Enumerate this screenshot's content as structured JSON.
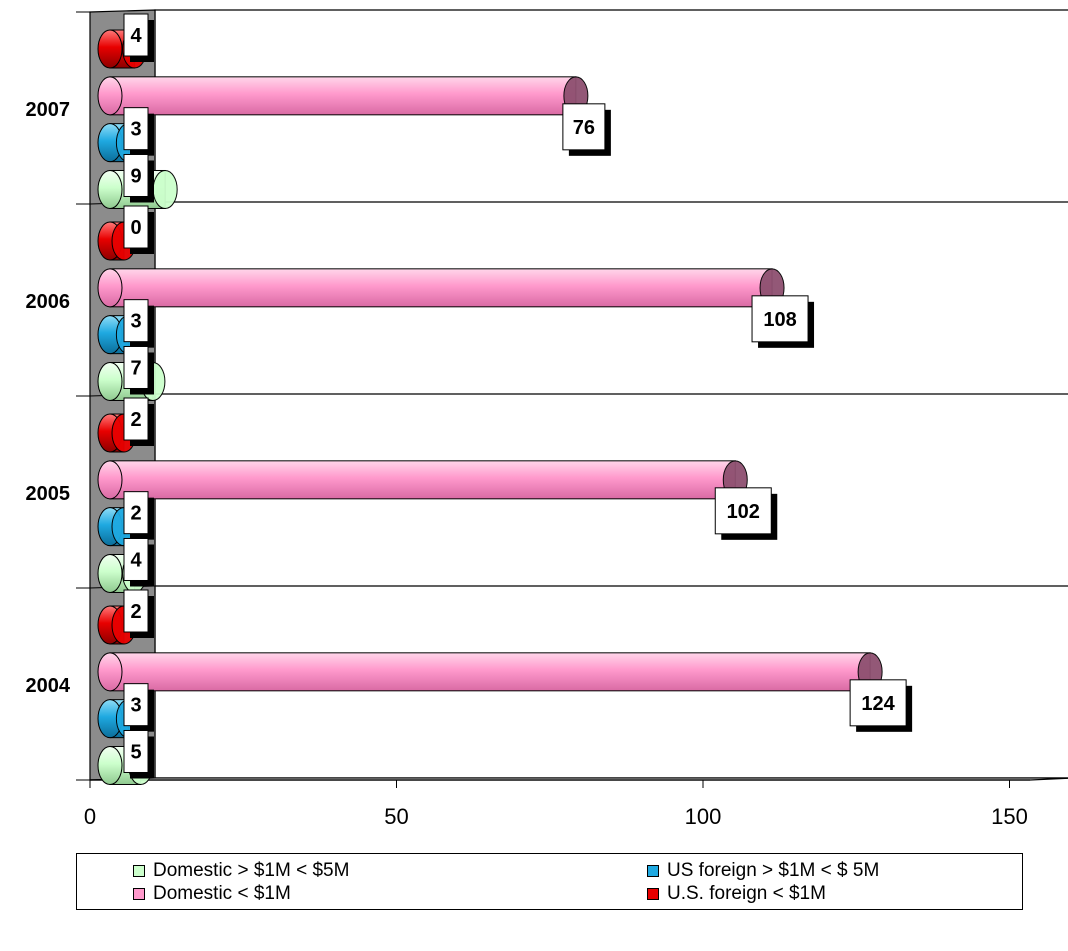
{
  "chart_data": {
    "type": "bar",
    "orientation": "horizontal",
    "categories": [
      "2004",
      "2005",
      "2006",
      "2007"
    ],
    "series": [
      {
        "name": "Domestic > $1M < $5M",
        "color": "#CCFFCC",
        "values": [
          5,
          4,
          7,
          9
        ]
      },
      {
        "name": "US foreign > $1M < $ 5M",
        "color": "#1FA9E1",
        "values": [
          3,
          2,
          3,
          3
        ]
      },
      {
        "name": "Domestic < $1M",
        "color": "#FF99CC",
        "values": [
          124,
          102,
          108,
          76
        ]
      },
      {
        "name": "U.S. foreign < $1M",
        "color": "#E80000",
        "values": [
          2,
          2,
          0,
          4
        ]
      }
    ],
    "xlim": [
      0,
      150
    ],
    "xticks": [
      0,
      50,
      100,
      150
    ],
    "title": "",
    "xlabel": "",
    "ylabel": "",
    "grid": true,
    "legend_position": "bottom"
  }
}
